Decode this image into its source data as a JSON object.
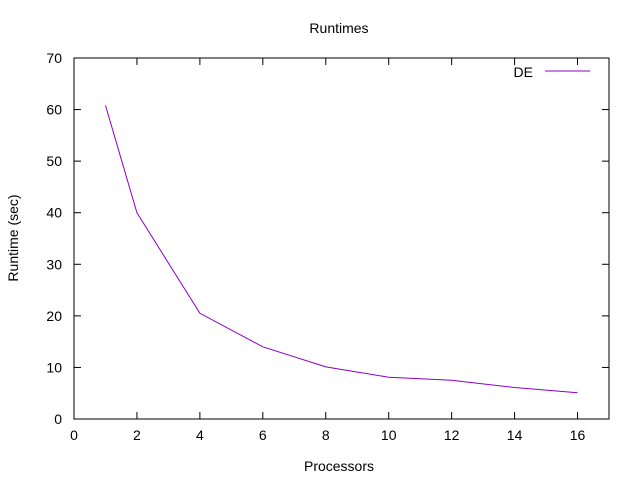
{
  "chart_data": {
    "type": "line",
    "title": "Runtimes",
    "xlabel": "Processors",
    "ylabel": "Runtime (sec)",
    "xlim": [
      0,
      17
    ],
    "ylim": [
      0,
      70
    ],
    "x_ticks": [
      0,
      2,
      4,
      6,
      8,
      10,
      12,
      14,
      16
    ],
    "y_ticks": [
      0,
      10,
      20,
      30,
      40,
      50,
      60,
      70
    ],
    "grid": false,
    "legend_position": "top-right",
    "series": [
      {
        "name": "DE",
        "color": "#8b00c8",
        "x": [
          1,
          2,
          4,
          6,
          8,
          10,
          12,
          14,
          16
        ],
        "y": [
          60.8,
          40.0,
          20.5,
          14.0,
          10.1,
          8.1,
          7.5,
          6.1,
          5.1
        ]
      }
    ]
  }
}
